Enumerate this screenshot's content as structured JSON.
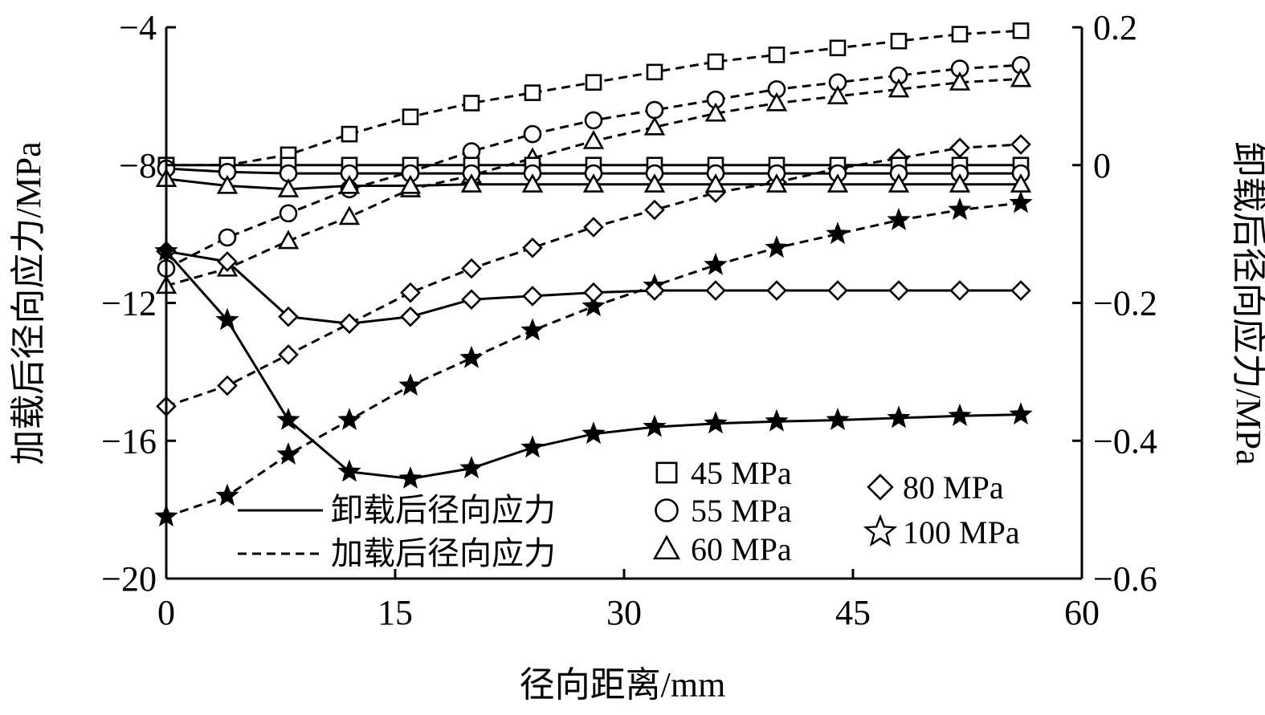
{
  "chart_data": {
    "type": "line",
    "xlabel": "径向距离/mm",
    "ylabel_left": "加载后径向应力/MPa",
    "ylabel_right": "卸载后径向应力/MPa",
    "xlim": [
      0,
      60
    ],
    "ylim_left": [
      -20,
      -4
    ],
    "ylim_right": [
      -0.6,
      0.2
    ],
    "xticks": [
      0,
      15,
      30,
      45,
      60
    ],
    "xtick_labels": [
      "0",
      "15",
      "30",
      "45",
      "60"
    ],
    "yticks_left": [
      -4,
      -8,
      -12,
      -16,
      -20
    ],
    "ytick_labels_left": [
      "−4",
      "−8",
      "−12",
      "−16",
      "−20"
    ],
    "yticks_right": [
      0.2,
      0,
      -0.2,
      -0.4,
      -0.6
    ],
    "ytick_labels_right": [
      "0.2",
      "0",
      "−0.2",
      "−0.4",
      "−0.6"
    ],
    "grid": false,
    "legend": {
      "line_styles": [
        {
          "label": "卸载后径向应力",
          "style": "solid"
        },
        {
          "label": "加载后径向应力",
          "style": "dashed"
        }
      ],
      "markers": [
        {
          "label": "45 MPa",
          "marker": "square"
        },
        {
          "label": "55 MPa",
          "marker": "circle"
        },
        {
          "label": "60 MPa",
          "marker": "triangle"
        },
        {
          "label": "80 MPa",
          "marker": "diamond"
        },
        {
          "label": "100 MPa",
          "marker": "star"
        }
      ]
    },
    "x": [
      0,
      4,
      8,
      12,
      16,
      20,
      24,
      28,
      32,
      36,
      40,
      44,
      48,
      52,
      56
    ],
    "series": [
      {
        "name": "45 MPa",
        "style": "dashed",
        "axis": "left",
        "marker": "square",
        "values": [
          -8.0,
          -8.0,
          -7.7,
          -7.1,
          -6.6,
          -6.2,
          -5.9,
          -5.6,
          -5.3,
          -5.0,
          -4.8,
          -4.6,
          -4.4,
          -4.2,
          -4.1
        ]
      },
      {
        "name": "55 MPa",
        "style": "dashed",
        "axis": "left",
        "marker": "circle",
        "values": [
          -11.0,
          -10.1,
          -9.4,
          -8.7,
          -8.2,
          -7.6,
          -7.1,
          -6.7,
          -6.4,
          -6.1,
          -5.8,
          -5.6,
          -5.4,
          -5.2,
          -5.1
        ]
      },
      {
        "name": "60 MPa",
        "style": "dashed",
        "axis": "left",
        "marker": "triangle",
        "values": [
          -11.5,
          -11.0,
          -10.2,
          -9.5,
          -8.7,
          -8.3,
          -7.8,
          -7.3,
          -6.9,
          -6.5,
          -6.2,
          -6.0,
          -5.8,
          -5.6,
          -5.5
        ]
      },
      {
        "name": "80 MPa",
        "style": "dashed",
        "axis": "left",
        "marker": "diamond",
        "values": [
          -15.0,
          -14.4,
          -13.5,
          -12.6,
          -11.7,
          -11.0,
          -10.4,
          -9.8,
          -9.3,
          -8.8,
          -8.5,
          -8.1,
          -7.8,
          -7.5,
          -7.4
        ]
      },
      {
        "name": "100 MPa",
        "style": "dashed",
        "axis": "left",
        "marker": "star",
        "values": [
          -18.2,
          -17.6,
          -16.4,
          -15.4,
          -14.4,
          -13.6,
          -12.8,
          -12.1,
          -11.5,
          -10.9,
          -10.4,
          -10.0,
          -9.6,
          -9.3,
          -9.1
        ]
      },
      {
        "name": "45 MPa",
        "style": "solid",
        "axis": "right",
        "marker": "square",
        "values": [
          0.0,
          0.0,
          0.0,
          0.0,
          0.0,
          0.0,
          0.0,
          0.0,
          0.0,
          0.0,
          0.0,
          0.0,
          0.0,
          0.0,
          0.0
        ]
      },
      {
        "name": "55 MPa",
        "style": "solid",
        "axis": "right",
        "marker": "circle",
        "values": [
          -0.005,
          -0.01,
          -0.012,
          -0.012,
          -0.012,
          -0.012,
          -0.012,
          -0.012,
          -0.012,
          -0.012,
          -0.012,
          -0.012,
          -0.012,
          -0.012,
          -0.012
        ]
      },
      {
        "name": "60 MPa",
        "style": "solid",
        "axis": "right",
        "marker": "triangle",
        "values": [
          -0.02,
          -0.03,
          -0.035,
          -0.03,
          -0.03,
          -0.028,
          -0.028,
          -0.028,
          -0.028,
          -0.028,
          -0.028,
          -0.028,
          -0.028,
          -0.028,
          -0.028
        ]
      },
      {
        "name": "80 MPa",
        "style": "solid",
        "axis": "right",
        "marker": "diamond",
        "values": [
          -0.125,
          -0.14,
          -0.22,
          -0.23,
          -0.22,
          -0.195,
          -0.19,
          -0.185,
          -0.182,
          -0.182,
          -0.182,
          -0.182,
          -0.182,
          -0.182,
          -0.182
        ]
      },
      {
        "name": "100 MPa",
        "style": "solid",
        "axis": "right",
        "marker": "star",
        "values": [
          -0.125,
          -0.225,
          -0.37,
          -0.445,
          -0.455,
          -0.44,
          -0.41,
          -0.39,
          -0.38,
          -0.375,
          -0.372,
          -0.37,
          -0.367,
          -0.364,
          -0.362
        ]
      }
    ]
  }
}
